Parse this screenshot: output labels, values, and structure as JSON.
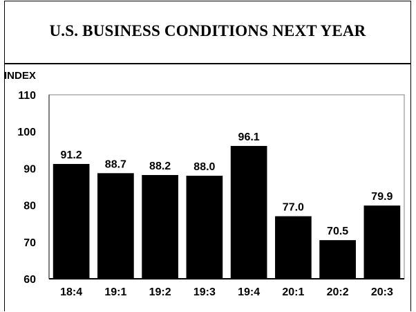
{
  "chart_data": {
    "type": "bar",
    "title": "U.S. BUSINESS CONDITIONS NEXT YEAR",
    "ylabel": "INDEX",
    "xlabel": "",
    "categories": [
      "18:4",
      "19:1",
      "19:2",
      "19:3",
      "19:4",
      "20:1",
      "20:2",
      "20:3"
    ],
    "values": [
      91.2,
      88.7,
      88.2,
      88.0,
      96.1,
      77.0,
      70.5,
      79.9
    ],
    "value_labels": [
      "91.2",
      "88.7",
      "88.2",
      "88.0",
      "96.1",
      "77.0",
      "70.5",
      "79.9"
    ],
    "ylim": [
      60,
      110
    ],
    "yticks": [
      "60",
      "70",
      "80",
      "90",
      "100",
      "110"
    ],
    "grid": false,
    "bar_color": "#000000"
  }
}
